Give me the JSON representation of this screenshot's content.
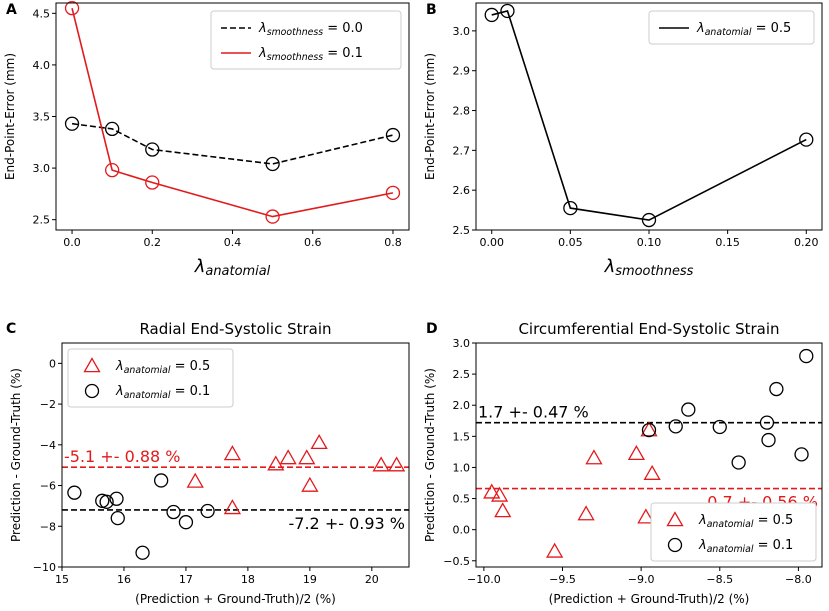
{
  "colors": {
    "black": "#000000",
    "red": "#e31a1c"
  },
  "chart_data": [
    {
      "panel": "A",
      "type": "line",
      "title": "",
      "xlabel_sym": "λ",
      "xlabel_sub": "anatomial",
      "ylabel": "End-Point-Error (mm)",
      "xlim": [
        -0.04,
        0.84
      ],
      "ylim": [
        2.4,
        4.6
      ],
      "xticks": [
        0.0,
        0.2,
        0.4,
        0.6,
        0.8
      ],
      "xtick_labels": [
        "0.0",
        "0.2",
        "0.4",
        "0.6",
        "0.8"
      ],
      "yticks": [
        2.5,
        3.0,
        3.5,
        4.0,
        4.5
      ],
      "ytick_labels": [
        "2.5",
        "3.0",
        "3.5",
        "4.0",
        "4.5"
      ],
      "legend": "top-right",
      "series": [
        {
          "name": "λ_smoothness = 0.0",
          "legend_main": "λ",
          "legend_sub": "smoothness",
          "legend_val": " = 0.0",
          "color": "black",
          "dash": true,
          "x": [
            0.0,
            0.1,
            0.2,
            0.5,
            0.8
          ],
          "y": [
            3.43,
            3.38,
            3.18,
            3.04,
            3.32
          ]
        },
        {
          "name": "λ_smoothness = 0.1",
          "legend_main": "λ",
          "legend_sub": "smoothness",
          "legend_val": " = 0.1",
          "color": "red",
          "dash": false,
          "x": [
            0.0,
            0.1,
            0.2,
            0.5,
            0.8
          ],
          "y": [
            4.55,
            2.98,
            2.86,
            2.53,
            2.76
          ]
        }
      ]
    },
    {
      "panel": "B",
      "type": "line",
      "title": "",
      "xlabel_sym": "λ",
      "xlabel_sub": "smoothness",
      "ylabel": "End-Point-Error (mm)",
      "xlim": [
        -0.01,
        0.21
      ],
      "ylim": [
        2.5,
        3.07
      ],
      "xticks": [
        0.0,
        0.05,
        0.1,
        0.15,
        0.2
      ],
      "xtick_labels": [
        "0.00",
        "0.05",
        "0.10",
        "0.15",
        "0.20"
      ],
      "yticks": [
        2.5,
        2.6,
        2.7,
        2.8,
        2.9,
        3.0
      ],
      "ytick_labels": [
        "2.5",
        "2.6",
        "2.7",
        "2.8",
        "2.9",
        "3.0"
      ],
      "legend": "top-right",
      "series": [
        {
          "name": "λ_anatomial = 0.5",
          "legend_main": "λ",
          "legend_sub": "anatomial",
          "legend_val": " = 0.5",
          "color": "black",
          "dash": false,
          "x": [
            0.0,
            0.01,
            0.05,
            0.1,
            0.2
          ],
          "y": [
            3.04,
            3.05,
            2.555,
            2.525,
            2.727
          ]
        }
      ]
    },
    {
      "panel": "C",
      "type": "scatter",
      "title": "Radial End-Systolic Strain",
      "xlabel": "(Prediction + Ground-Truth)/2 (%)",
      "ylabel": "Prediction - Ground-Truth (%)",
      "xlim": [
        15,
        20.6
      ],
      "ylim": [
        -10,
        1
      ],
      "xticks": [
        15,
        16,
        17,
        18,
        19,
        20
      ],
      "xtick_labels": [
        "15",
        "16",
        "17",
        "18",
        "19",
        "20"
      ],
      "yticks": [
        -10,
        -8,
        -6,
        -4,
        -2,
        0
      ],
      "ytick_labels": [
        "−10",
        "−8",
        "−6",
        "−4",
        "−2",
        "0"
      ],
      "legend": "top-left",
      "series": [
        {
          "name": "λ_anatomial = 0.5",
          "legend_main": "λ",
          "legend_sub": "anatomial",
          "legend_val": " = 0.5",
          "marker": "triangle",
          "color": "red",
          "x": [
            17.15,
            17.75,
            17.75,
            18.45,
            18.65,
            18.95,
            19.0,
            19.15,
            20.15,
            20.4
          ],
          "y": [
            -5.8,
            -4.45,
            -7.1,
            -4.95,
            -4.65,
            -4.65,
            -6.0,
            -3.9,
            -5.0,
            -5.0
          ]
        },
        {
          "name": "λ_anatomial = 0.1",
          "legend_main": "λ",
          "legend_sub": "anatomial",
          "legend_val": " = 0.1",
          "marker": "circle",
          "color": "black",
          "x": [
            15.2,
            15.65,
            15.72,
            15.88,
            15.9,
            16.3,
            16.6,
            16.8,
            17.0,
            17.35
          ],
          "y": [
            -6.35,
            -6.75,
            -6.8,
            -6.65,
            -7.6,
            -9.3,
            -5.75,
            -7.3,
            -7.8,
            -7.25
          ]
        }
      ],
      "hlines": [
        {
          "y": -5.1,
          "color": "red",
          "label": "-5.1 +- 0.88 %",
          "label_pos": "above-left"
        },
        {
          "y": -7.2,
          "color": "black",
          "label": "-7.2 +- 0.93 %",
          "label_pos": "below-right"
        }
      ]
    },
    {
      "panel": "D",
      "type": "scatter",
      "title": "Circumferential End-Systolic Strain",
      "xlabel": "(Prediction + Ground-Truth)/2 (%)",
      "ylabel": "Prediction - Ground-Truth (%)",
      "xlim": [
        -10.05,
        -7.85
      ],
      "ylim": [
        -0.6,
        3.0
      ],
      "xticks": [
        -10.0,
        -9.5,
        -9.0,
        -8.5,
        -8.0
      ],
      "xtick_labels": [
        "−10.0",
        "−9.5",
        "−9.0",
        "−8.5",
        "−8.0"
      ],
      "yticks": [
        -0.5,
        0.0,
        0.5,
        1.0,
        1.5,
        2.0,
        2.5,
        3.0
      ],
      "ytick_labels": [
        "−0.5",
        "0.0",
        "0.5",
        "1.0",
        "1.5",
        "2.0",
        "2.5",
        "3.0"
      ],
      "legend": "bottom-right",
      "series": [
        {
          "name": "λ_anatomial = 0.5",
          "legend_main": "λ",
          "legend_sub": "anatomial",
          "legend_val": " = 0.5",
          "marker": "triangle",
          "color": "red",
          "x": [
            -9.95,
            -9.9,
            -9.88,
            -9.55,
            -9.35,
            -9.3,
            -9.03,
            -8.97,
            -8.95,
            -8.93
          ],
          "y": [
            0.6,
            0.55,
            0.3,
            -0.35,
            0.25,
            1.15,
            1.22,
            0.2,
            1.6,
            0.9
          ]
        },
        {
          "name": "λ_anatomial = 0.1",
          "legend_main": "λ",
          "legend_sub": "anatomial",
          "legend_val": " = 0.1",
          "marker": "circle",
          "color": "black",
          "x": [
            -8.95,
            -8.78,
            -8.7,
            -8.5,
            -8.38,
            -8.2,
            -8.19,
            -8.14,
            -7.98,
            -7.95
          ],
          "y": [
            1.6,
            1.66,
            1.93,
            1.65,
            1.08,
            1.72,
            1.44,
            2.26,
            1.21,
            2.79
          ]
        }
      ],
      "hlines": [
        {
          "y": 1.72,
          "color": "black",
          "label": "1.7 +- 0.47 %",
          "label_pos": "above-left"
        },
        {
          "y": 0.66,
          "color": "red",
          "label": "0.7 +- 0.56 %",
          "label_pos": "below-right"
        }
      ]
    }
  ]
}
